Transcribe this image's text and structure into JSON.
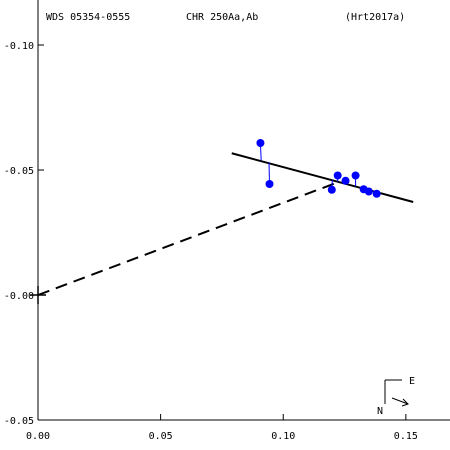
{
  "header": {
    "left": "WDS 05354-0555",
    "center": "CHR 250Aa,Ab",
    "right": "(Hrt2017a)"
  },
  "compass": {
    "east_label": "E",
    "north_label": "N"
  },
  "colors": {
    "points": "#0000ff",
    "lines": "#000000"
  },
  "chart_data": {
    "type": "scatter",
    "title": "",
    "xlabel": "",
    "ylabel": "",
    "xlim": [
      0.0,
      0.168
    ],
    "ylim": [
      -0.05,
      0.118
    ],
    "grid": false,
    "x_ticks": [
      {
        "value": 0.0,
        "label": "0.00"
      },
      {
        "value": 0.05,
        "label": "0.05"
      },
      {
        "value": 0.1,
        "label": "0.10"
      },
      {
        "value": 0.15,
        "label": "0.15"
      }
    ],
    "y_ticks": [
      {
        "value": 0.1,
        "label": "-0.10"
      },
      {
        "value": 0.05,
        "label": "-0.05"
      },
      {
        "value": 0.0,
        "label": "-0.00"
      },
      {
        "value": -0.05,
        "label": "-0.05"
      }
    ],
    "origin": [
      0.0,
      0.0
    ],
    "orbit_segment": {
      "x": [
        0.079,
        0.153
      ],
      "y": [
        0.0567,
        0.0372
      ]
    },
    "line_of_nodes": {
      "x": [
        0.0,
        0.122
      ],
      "y": [
        0.0,
        0.045
      ]
    },
    "points": [
      {
        "x": 0.0907,
        "y": 0.0608,
        "orbit_x": 0.091,
        "orbit_y": 0.0538
      },
      {
        "x": 0.0944,
        "y": 0.0444,
        "orbit_x": 0.0942,
        "orbit_y": 0.0531
      },
      {
        "x": 0.1198,
        "y": 0.0421,
        "orbit_x": 0.12,
        "orbit_y": 0.046
      },
      {
        "x": 0.1222,
        "y": 0.0478,
        "orbit_x": 0.1222,
        "orbit_y": 0.0454
      },
      {
        "x": 0.1254,
        "y": 0.0457,
        "orbit_x": 0.1254,
        "orbit_y": 0.0446
      },
      {
        "x": 0.1295,
        "y": 0.0478,
        "orbit_x": 0.1295,
        "orbit_y": 0.0435
      },
      {
        "x": 0.1328,
        "y": 0.0423,
        "orbit_x": 0.1328,
        "orbit_y": 0.0426
      },
      {
        "x": 0.1349,
        "y": 0.0414,
        "orbit_x": 0.1349,
        "orbit_y": 0.042
      },
      {
        "x": 0.1381,
        "y": 0.0405,
        "orbit_x": 0.1381,
        "orbit_y": 0.0412
      }
    ]
  }
}
